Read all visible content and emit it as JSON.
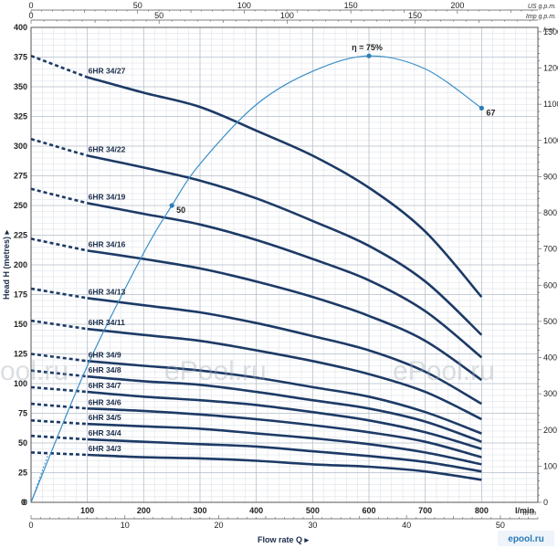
{
  "chart_data": {
    "type": "line",
    "x_label": "Flow rate Q",
    "x_unit": "l/min",
    "x_ticks": [
      "0",
      "100",
      "200",
      "300",
      "400",
      "500",
      "600",
      "700",
      "800"
    ],
    "y_label": "Head H  (metres)",
    "y_ticks": [
      "0",
      "25",
      "50",
      "75",
      "100",
      "125",
      "150",
      "175",
      "200",
      "225",
      "250",
      "275",
      "300",
      "325",
      "350",
      "375",
      "400"
    ],
    "xlim": [
      0,
      900
    ],
    "ylim": [
      0,
      400
    ],
    "top_axis_1": {
      "unit": "US g.p.m.",
      "ticks": [
        "0",
        "50",
        "100",
        "150",
        "200"
      ]
    },
    "top_axis_2": {
      "unit": "Imp g.p.m.",
      "ticks": [
        "0",
        "50",
        "100",
        "150"
      ]
    },
    "bottom_axis_2": {
      "unit": "m³/h",
      "ticks": [
        "0",
        "10",
        "20",
        "30",
        "40",
        "50"
      ]
    },
    "right_axis": {
      "unit": "feet",
      "ticks": [
        "0",
        "100",
        "200",
        "300",
        "400",
        "500",
        "600",
        "700",
        "800",
        "900",
        "1000",
        "1100",
        "1200",
        "1300"
      ]
    },
    "series": [
      {
        "name": "6HR 34/27",
        "x": [
          0,
          100,
          200,
          300,
          400,
          500,
          600,
          700,
          800
        ],
        "y": [
          376,
          358,
          345,
          333,
          313,
          292,
          265,
          228,
          173
        ]
      },
      {
        "name": "6HR 34/22",
        "x": [
          0,
          100,
          200,
          300,
          400,
          500,
          600,
          700,
          800
        ],
        "y": [
          306,
          292,
          282,
          271,
          256,
          237,
          216,
          186,
          141
        ]
      },
      {
        "name": "6HR 34/19",
        "x": [
          0,
          100,
          200,
          300,
          400,
          500,
          600,
          700,
          800
        ],
        "y": [
          264,
          252,
          243,
          234,
          221,
          205,
          187,
          161,
          122
        ]
      },
      {
        "name": "6HR 34/16",
        "x": [
          0,
          100,
          200,
          300,
          400,
          500,
          600,
          700,
          800
        ],
        "y": [
          222,
          212,
          205,
          197,
          186,
          173,
          157,
          136,
          103
        ]
      },
      {
        "name": "6HR 34/13",
        "x": [
          0,
          100,
          200,
          300,
          400,
          500,
          600,
          700,
          800
        ],
        "y": [
          180,
          172,
          166,
          160,
          151,
          140,
          128,
          110,
          83
        ]
      },
      {
        "name": "6HR 34/11",
        "x": [
          0,
          100,
          200,
          300,
          400,
          500,
          600,
          700,
          800
        ],
        "y": [
          153,
          146,
          141,
          136,
          128,
          119,
          108,
          93,
          70
        ]
      },
      {
        "name": "6HR 34/9",
        "x": [
          0,
          100,
          200,
          300,
          400,
          500,
          600,
          700,
          800
        ],
        "y": [
          125,
          119,
          115,
          111,
          105,
          97,
          89,
          76,
          58
        ]
      },
      {
        "name": "6HR 34/8",
        "x": [
          0,
          100,
          200,
          300,
          400,
          500,
          600,
          700,
          800
        ],
        "y": [
          111,
          106,
          102,
          99,
          93,
          86,
          79,
          68,
          51
        ]
      },
      {
        "name": "6HR 34/7",
        "x": [
          0,
          100,
          200,
          300,
          400,
          500,
          600,
          700,
          800
        ],
        "y": [
          97,
          93,
          89,
          86,
          82,
          76,
          69,
          59,
          45
        ]
      },
      {
        "name": "6HR 34/6",
        "x": [
          0,
          100,
          200,
          300,
          400,
          500,
          600,
          700,
          800
        ],
        "y": [
          83,
          79,
          77,
          74,
          70,
          65,
          59,
          51,
          38
        ]
      },
      {
        "name": "6HR 34/5",
        "x": [
          0,
          100,
          200,
          300,
          400,
          500,
          600,
          700,
          800
        ],
        "y": [
          69,
          66,
          64,
          62,
          58,
          54,
          49,
          42,
          32
        ]
      },
      {
        "name": "6HR 34/4",
        "x": [
          0,
          100,
          200,
          300,
          400,
          500,
          600,
          700,
          800
        ],
        "y": [
          56,
          53,
          51,
          49,
          47,
          43,
          39,
          34,
          26
        ]
      },
      {
        "name": "6HR 34/3",
        "x": [
          0,
          100,
          200,
          300,
          400,
          500,
          600,
          700,
          800
        ],
        "y": [
          42,
          40,
          38,
          37,
          35,
          32,
          30,
          26,
          19
        ]
      }
    ],
    "efficiency_curve": {
      "x": [
        0,
        100,
        200,
        250,
        300,
        400,
        500,
        600,
        700,
        800
      ],
      "y": [
        0,
        115,
        210,
        250,
        285,
        335,
        363,
        376,
        365,
        332
      ],
      "points": [
        {
          "x": 250,
          "y": 250,
          "label": "50"
        },
        {
          "x": 600,
          "y": 376,
          "label": "η = 75%"
        },
        {
          "x": 800,
          "y": 332,
          "label": "67"
        }
      ]
    },
    "watermarks": [
      "ool.ru",
      "ePool.ru",
      "ePool.ru"
    ],
    "logo_text": "epool.ru"
  }
}
